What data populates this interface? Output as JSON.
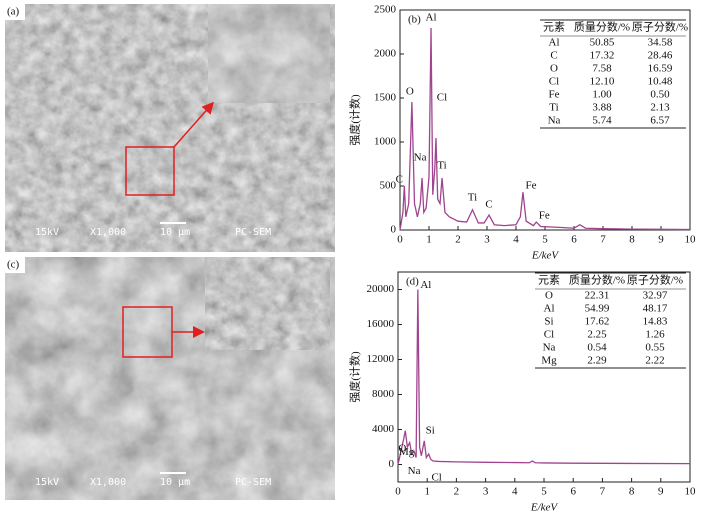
{
  "images": [
    {
      "label": "(a)",
      "info": [
        "15kV",
        "X1,000",
        "10 μm",
        "PC-SEM"
      ]
    },
    {
      "label": "(c)",
      "info": [
        "15kV",
        "X1,000",
        "10 μm",
        "PC-SEM"
      ]
    }
  ],
  "chart_data": [
    {
      "type": "line",
      "panel": "(b)",
      "x_label": "E/keV",
      "y_label": "强度(计数)",
      "xlim": [
        0,
        10
      ],
      "xticks": [
        0,
        1,
        2,
        3,
        4,
        5,
        6,
        7,
        8,
        9,
        10
      ],
      "ylim": [
        0,
        2500
      ],
      "yticks": [
        0,
        500,
        1000,
        1500,
        2000,
        2500
      ],
      "x": [
        0,
        0.1,
        0.15,
        0.2,
        0.3,
        0.41,
        0.5,
        0.6,
        0.7,
        0.76,
        0.82,
        0.9,
        1.0,
        1.07,
        1.13,
        1.2,
        1.24,
        1.3,
        1.38,
        1.45,
        1.55,
        1.7,
        2.0,
        2.3,
        2.5,
        2.7,
        2.9,
        3.07,
        3.25,
        3.6,
        4.0,
        4.15,
        4.24,
        4.35,
        4.6,
        4.7,
        4.85,
        5.5,
        6.0,
        6.2,
        6.4,
        7,
        8,
        9,
        10
      ],
      "series": [
        {
          "color": "#a0448f",
          "values": [
            0,
            200,
            500,
            150,
            300,
            1455,
            300,
            150,
            300,
            590,
            200,
            250,
            600,
            2295,
            400,
            700,
            1045,
            350,
            300,
            590,
            200,
            150,
            100,
            90,
            230,
            80,
            80,
            170,
            60,
            50,
            60,
            150,
            430,
            100,
            50,
            90,
            40,
            30,
            20,
            60,
            20,
            15,
            10,
            8,
            5
          ]
        }
      ],
      "annotations": [
        "C",
        "O",
        "Na",
        "Al",
        "Cl",
        "Ti",
        "Ti",
        "C",
        "Fe",
        "Fe"
      ],
      "table": {
        "header": [
          "元素",
          "质量分数/%",
          "原子分数/%"
        ],
        "rows": [
          [
            "Al",
            "50.85",
            "34.58"
          ],
          [
            "C",
            "17.32",
            "28.46"
          ],
          [
            "O",
            "7.58",
            "16.59"
          ],
          [
            "Cl",
            "12.10",
            "10.48"
          ],
          [
            "Fe",
            "1.00",
            "0.50"
          ],
          [
            "Ti",
            "3.88",
            "2.13"
          ],
          [
            "Na",
            "5.74",
            "6.57"
          ]
        ]
      }
    },
    {
      "type": "line",
      "panel": "(d)",
      "x_label": "E/keV",
      "y_label": "强度(计数)",
      "xlim": [
        0,
        10
      ],
      "xticks": [
        0,
        1,
        2,
        3,
        4,
        5,
        6,
        7,
        8,
        9,
        10
      ],
      "ylim": [
        -2000,
        22000
      ],
      "yticks": [
        0,
        4000,
        8000,
        12000,
        16000,
        20000
      ],
      "x": [
        0,
        0.1,
        0.2,
        0.25,
        0.32,
        0.4,
        0.47,
        0.55,
        0.62,
        0.68,
        0.74,
        0.8,
        0.9,
        0.97,
        1.05,
        1.12,
        1.2,
        1.4,
        2,
        3,
        4,
        4.5,
        4.6,
        4.7,
        5,
        6,
        8,
        10
      ],
      "series": [
        {
          "color": "#a0448f",
          "values": [
            0,
            1500,
            3000,
            3860,
            2000,
            2500,
            1200,
            1500,
            800,
            20000,
            2000,
            1000,
            2700,
            800,
            1200,
            600,
            400,
            350,
            300,
            250,
            220,
            200,
            400,
            200,
            180,
            150,
            120,
            100
          ]
        }
      ],
      "annotations": [
        "O",
        "Mg",
        "Na",
        "Al",
        "Si",
        "Cl"
      ],
      "table": {
        "header": [
          "元素",
          "质量分数/%",
          "原子分数/%"
        ],
        "rows": [
          [
            "O",
            "22.31",
            "32.97"
          ],
          [
            "Al",
            "54.99",
            "48.17"
          ],
          [
            "Si",
            "17.62",
            "14.83"
          ],
          [
            "Cl",
            "2.25",
            "1.26"
          ],
          [
            "Na",
            "0.54",
            "0.55"
          ],
          [
            "Mg",
            "2.29",
            "2.22"
          ]
        ]
      }
    }
  ]
}
